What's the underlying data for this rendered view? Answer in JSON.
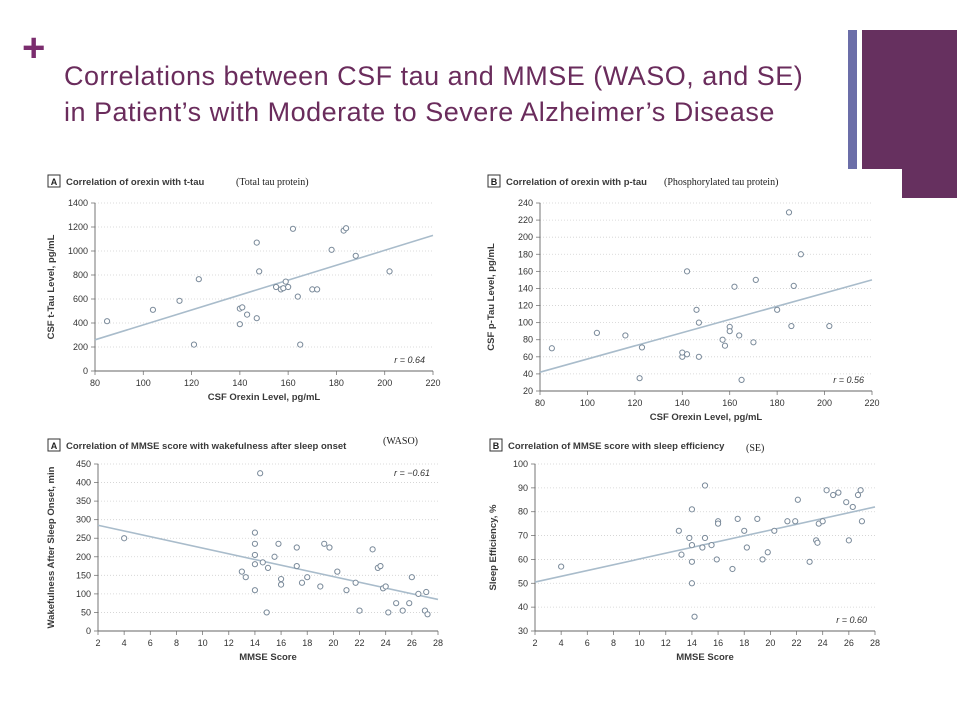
{
  "slide": {
    "plus": "+",
    "title": "Correlations between CSF tau and MMSE (WASO, and SE) in Patient’s with Moderate to Severe Alzheimer’s Disease",
    "colors": {
      "title": "#6a2c5c",
      "accent_dark": "#66305f",
      "accent_light": "#6b6ea8",
      "marker": "#7a8a9a",
      "line": "#a9bccb"
    }
  },
  "notes": {
    "ttau": "(Total tau protein)",
    "ptau": "(Phosphorylated tau protein)",
    "waso": "(WASO)",
    "se": "(SE)"
  },
  "chart_data": [
    {
      "id": "ttau",
      "type": "scatter",
      "panel_letter": "A",
      "title": "Correlation of orexin with t-tau",
      "xlabel": "CSF Orexin Level, pg/mL",
      "ylabel": "CSF t-Tau Level, pg/mL",
      "xlim": [
        80,
        220
      ],
      "ylim": [
        0,
        1400
      ],
      "xticks": [
        80,
        100,
        120,
        140,
        160,
        180,
        200,
        220
      ],
      "yticks": [
        0,
        200,
        400,
        600,
        800,
        1000,
        1200,
        1400
      ],
      "r_label": "r = 0.64",
      "r_pos": "bottom-right",
      "fit": [
        [
          80,
          260
        ],
        [
          220,
          1130
        ]
      ],
      "points": [
        [
          85,
          415
        ],
        [
          104,
          510
        ],
        [
          115,
          585
        ],
        [
          121,
          220
        ],
        [
          123,
          765
        ],
        [
          140,
          390
        ],
        [
          140,
          520
        ],
        [
          141,
          530
        ],
        [
          143,
          470
        ],
        [
          147,
          440
        ],
        [
          147,
          1070
        ],
        [
          148,
          830
        ],
        [
          155,
          700
        ],
        [
          157,
          680
        ],
        [
          158,
          690
        ],
        [
          159,
          745
        ],
        [
          160,
          700
        ],
        [
          162,
          1185
        ],
        [
          164,
          620
        ],
        [
          165,
          220
        ],
        [
          170,
          680
        ],
        [
          172,
          680
        ],
        [
          178,
          1010
        ],
        [
          183,
          1170
        ],
        [
          184,
          1190
        ],
        [
          188,
          960
        ],
        [
          202,
          830
        ]
      ]
    },
    {
      "id": "ptau",
      "type": "scatter",
      "panel_letter": "B",
      "title": "Correlation of orexin with p-tau",
      "xlabel": "CSF Orexin Level, pg/mL",
      "ylabel": "CSF p-Tau Level, pg/mL",
      "xlim": [
        80,
        220
      ],
      "ylim": [
        20,
        240
      ],
      "xticks": [
        80,
        100,
        120,
        140,
        160,
        180,
        200,
        220
      ],
      "yticks": [
        20,
        40,
        60,
        80,
        100,
        120,
        140,
        160,
        180,
        200,
        220,
        240
      ],
      "r_label": "r = 0.56",
      "r_pos": "bottom-right",
      "fit": [
        [
          80,
          42
        ],
        [
          220,
          150
        ]
      ],
      "points": [
        [
          85,
          70
        ],
        [
          104,
          88
        ],
        [
          116,
          85
        ],
        [
          122,
          35
        ],
        [
          123,
          71
        ],
        [
          140,
          60
        ],
        [
          140,
          65
        ],
        [
          142,
          63
        ],
        [
          142,
          160
        ],
        [
          146,
          115
        ],
        [
          147,
          100
        ],
        [
          147,
          60
        ],
        [
          157,
          80
        ],
        [
          158,
          73
        ],
        [
          160,
          95
        ],
        [
          160,
          90
        ],
        [
          162,
          142
        ],
        [
          164,
          85
        ],
        [
          165,
          33
        ],
        [
          170,
          77
        ],
        [
          171,
          150
        ],
        [
          180,
          115
        ],
        [
          185,
          229
        ],
        [
          186,
          96
        ],
        [
          187,
          143
        ],
        [
          190,
          180
        ],
        [
          202,
          96
        ]
      ]
    },
    {
      "id": "waso",
      "type": "scatter",
      "panel_letter": "A",
      "title": "Correlation of MMSE score with wakefulness after sleep onset",
      "xlabel": "MMSE Score",
      "ylabel": "Wakefulness After Sleep Onset, min",
      "xlim": [
        2,
        28
      ],
      "ylim": [
        0,
        450
      ],
      "xticks": [
        2,
        4,
        6,
        8,
        10,
        12,
        14,
        16,
        18,
        20,
        22,
        24,
        26,
        28
      ],
      "yticks": [
        0,
        50,
        100,
        150,
        200,
        250,
        300,
        350,
        400,
        450
      ],
      "r_label": "r = −0.61",
      "r_pos": "top-right",
      "fit": [
        [
          2,
          285
        ],
        [
          28,
          85
        ]
      ],
      "points": [
        [
          4,
          250
        ],
        [
          13,
          160
        ],
        [
          13.3,
          145
        ],
        [
          14,
          265
        ],
        [
          14,
          235
        ],
        [
          14,
          205
        ],
        [
          14,
          180
        ],
        [
          14,
          110
        ],
        [
          14.4,
          425
        ],
        [
          14.6,
          185
        ],
        [
          14.9,
          50
        ],
        [
          15,
          170
        ],
        [
          15.5,
          200
        ],
        [
          15.8,
          235
        ],
        [
          16,
          140
        ],
        [
          16,
          125
        ],
        [
          17.2,
          225
        ],
        [
          17.2,
          175
        ],
        [
          17.6,
          130
        ],
        [
          18,
          145
        ],
        [
          19,
          120
        ],
        [
          19.3,
          235
        ],
        [
          19.7,
          225
        ],
        [
          20.3,
          160
        ],
        [
          21,
          110
        ],
        [
          21.7,
          130
        ],
        [
          22,
          55
        ],
        [
          23,
          220
        ],
        [
          23.4,
          170
        ],
        [
          23.6,
          175
        ],
        [
          23.8,
          115
        ],
        [
          24,
          120
        ],
        [
          24.2,
          50
        ],
        [
          24.8,
          75
        ],
        [
          25.3,
          55
        ],
        [
          25.8,
          75
        ],
        [
          26,
          145
        ],
        [
          26.5,
          100
        ],
        [
          27,
          55
        ],
        [
          27.1,
          105
        ],
        [
          27.2,
          45
        ]
      ]
    },
    {
      "id": "se",
      "type": "scatter",
      "panel_letter": "B",
      "title": "Correlation of MMSE score with sleep efficiency",
      "xlabel": "MMSE Score",
      "ylabel": "Sleep Efficiency, %",
      "xlim": [
        2,
        28
      ],
      "ylim": [
        30,
        100
      ],
      "xticks": [
        2,
        4,
        6,
        8,
        10,
        12,
        14,
        16,
        18,
        20,
        22,
        24,
        26,
        28
      ],
      "yticks": [
        30,
        40,
        50,
        60,
        70,
        80,
        90,
        100
      ],
      "r_label": "r = 0.60",
      "r_pos": "bottom-right",
      "fit": [
        [
          2,
          50.5
        ],
        [
          28,
          82
        ]
      ],
      "points": [
        [
          4,
          57
        ],
        [
          13,
          72
        ],
        [
          13.2,
          62
        ],
        [
          13.8,
          69
        ],
        [
          14,
          81
        ],
        [
          14,
          66
        ],
        [
          14,
          50
        ],
        [
          14,
          59
        ],
        [
          14.2,
          36
        ],
        [
          14.8,
          65
        ],
        [
          15,
          91
        ],
        [
          15,
          69
        ],
        [
          15.5,
          66
        ],
        [
          15.9,
          60
        ],
        [
          16,
          76
        ],
        [
          16,
          75
        ],
        [
          17.1,
          56
        ],
        [
          17.5,
          77
        ],
        [
          18,
          72
        ],
        [
          18.2,
          65
        ],
        [
          19,
          77
        ],
        [
          19.4,
          60
        ],
        [
          19.8,
          63
        ],
        [
          20.3,
          72
        ],
        [
          21.3,
          76
        ],
        [
          21.9,
          76
        ],
        [
          22.1,
          85
        ],
        [
          23,
          59
        ],
        [
          23.5,
          68
        ],
        [
          23.6,
          67
        ],
        [
          23.7,
          75
        ],
        [
          24,
          76
        ],
        [
          24.3,
          89
        ],
        [
          24.8,
          87
        ],
        [
          25.2,
          88
        ],
        [
          25.8,
          84
        ],
        [
          26,
          68
        ],
        [
          26.3,
          82
        ],
        [
          26.7,
          87
        ],
        [
          26.9,
          89
        ],
        [
          27,
          76
        ]
      ]
    }
  ]
}
